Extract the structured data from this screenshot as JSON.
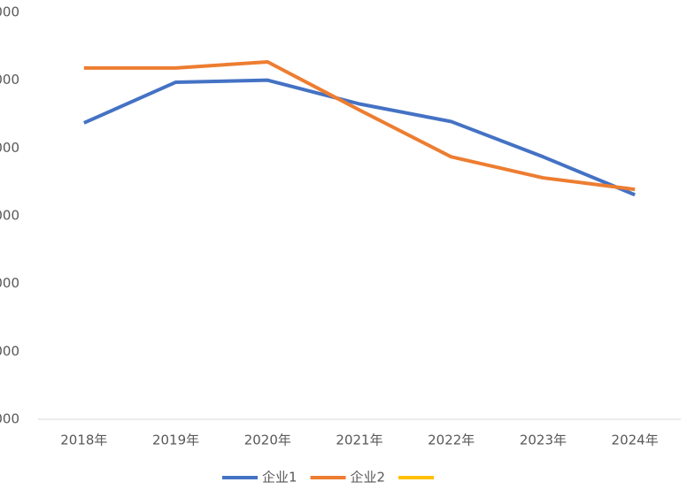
{
  "chart_data": {
    "type": "line",
    "categories": [
      "2018年",
      "2019年",
      "2020年",
      "2021年",
      "2022年",
      "2023年",
      "2024年"
    ],
    "series": [
      {
        "name": "企业1",
        "color": "#4472c4",
        "values": [
          4370,
          4970,
          5000,
          4650,
          4390,
          3870,
          3310
        ]
      },
      {
        "name": "企业2",
        "color": "#ed7d31",
        "values": [
          5180,
          5180,
          5270,
          4560,
          3870,
          3560,
          3390
        ]
      },
      {
        "color": "#ffc000",
        "values": [
          null,
          null,
          null,
          null,
          null,
          null,
          null
        ]
      }
    ],
    "ylim": [
      0,
      6000
    ],
    "yticks": [
      {
        "value": 0,
        "label": "000"
      },
      {
        "value": 1000,
        "label": "000"
      },
      {
        "value": 2000,
        "label": "000"
      },
      {
        "value": 3000,
        "label": "000"
      },
      {
        "value": 4000,
        "label": "000"
      },
      {
        "value": 5000,
        "label": "000"
      },
      {
        "value": 6000,
        "label": "000"
      }
    ],
    "grid": false
  }
}
